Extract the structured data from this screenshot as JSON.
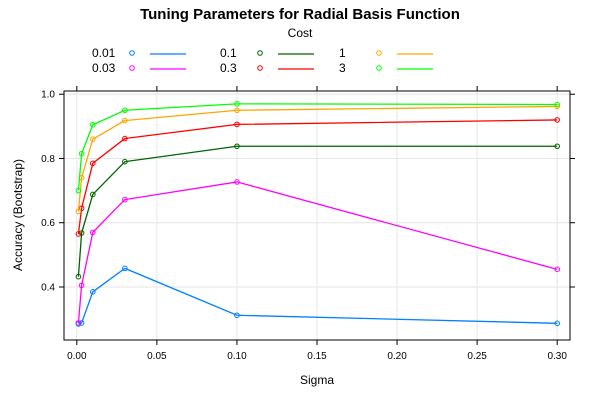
{
  "chart_data": {
    "type": "line",
    "title": "Tuning Parameters for Radial Basis Function",
    "xlabel": "Sigma",
    "ylabel": "Accuracy (Bootstrap)",
    "legend_title": "Cost",
    "legend_position": "top",
    "grid": true,
    "xlim": [
      -0.008,
      0.308
    ],
    "ylim": [
      0.235,
      1.01
    ],
    "x_ticks": [
      0.0,
      0.05,
      0.1,
      0.15,
      0.2,
      0.25,
      0.3
    ],
    "x_tick_labels": [
      "0.00",
      "0.05",
      "0.10",
      "0.15",
      "0.20",
      "0.25",
      "0.30"
    ],
    "y_ticks": [
      0.4,
      0.6,
      0.8,
      1.0
    ],
    "y_tick_labels": [
      "0.4",
      "0.6",
      "0.8",
      "1.0"
    ],
    "x": [
      0.001,
      0.003,
      0.01,
      0.03,
      0.1,
      0.3
    ],
    "series": [
      {
        "name": "0.01",
        "color": "#0080ff",
        "values": [
          0.285,
          0.288,
          0.385,
          0.458,
          0.312,
          0.287
        ]
      },
      {
        "name": "0.03",
        "color": "#ff00ff",
        "values": [
          0.288,
          0.405,
          0.57,
          0.672,
          0.727,
          0.455
        ]
      },
      {
        "name": "0.1",
        "color": "#006400",
        "values": [
          0.432,
          0.568,
          0.688,
          0.79,
          0.838,
          0.838
        ]
      },
      {
        "name": "0.3",
        "color": "#ff0000",
        "values": [
          0.565,
          0.645,
          0.785,
          0.862,
          0.906,
          0.92
        ]
      },
      {
        "name": "1",
        "color": "#ffa500",
        "values": [
          0.635,
          0.74,
          0.86,
          0.918,
          0.95,
          0.962
        ]
      },
      {
        "name": "3",
        "color": "#00ff00",
        "values": [
          0.7,
          0.815,
          0.905,
          0.95,
          0.97,
          0.968
        ]
      }
    ]
  }
}
